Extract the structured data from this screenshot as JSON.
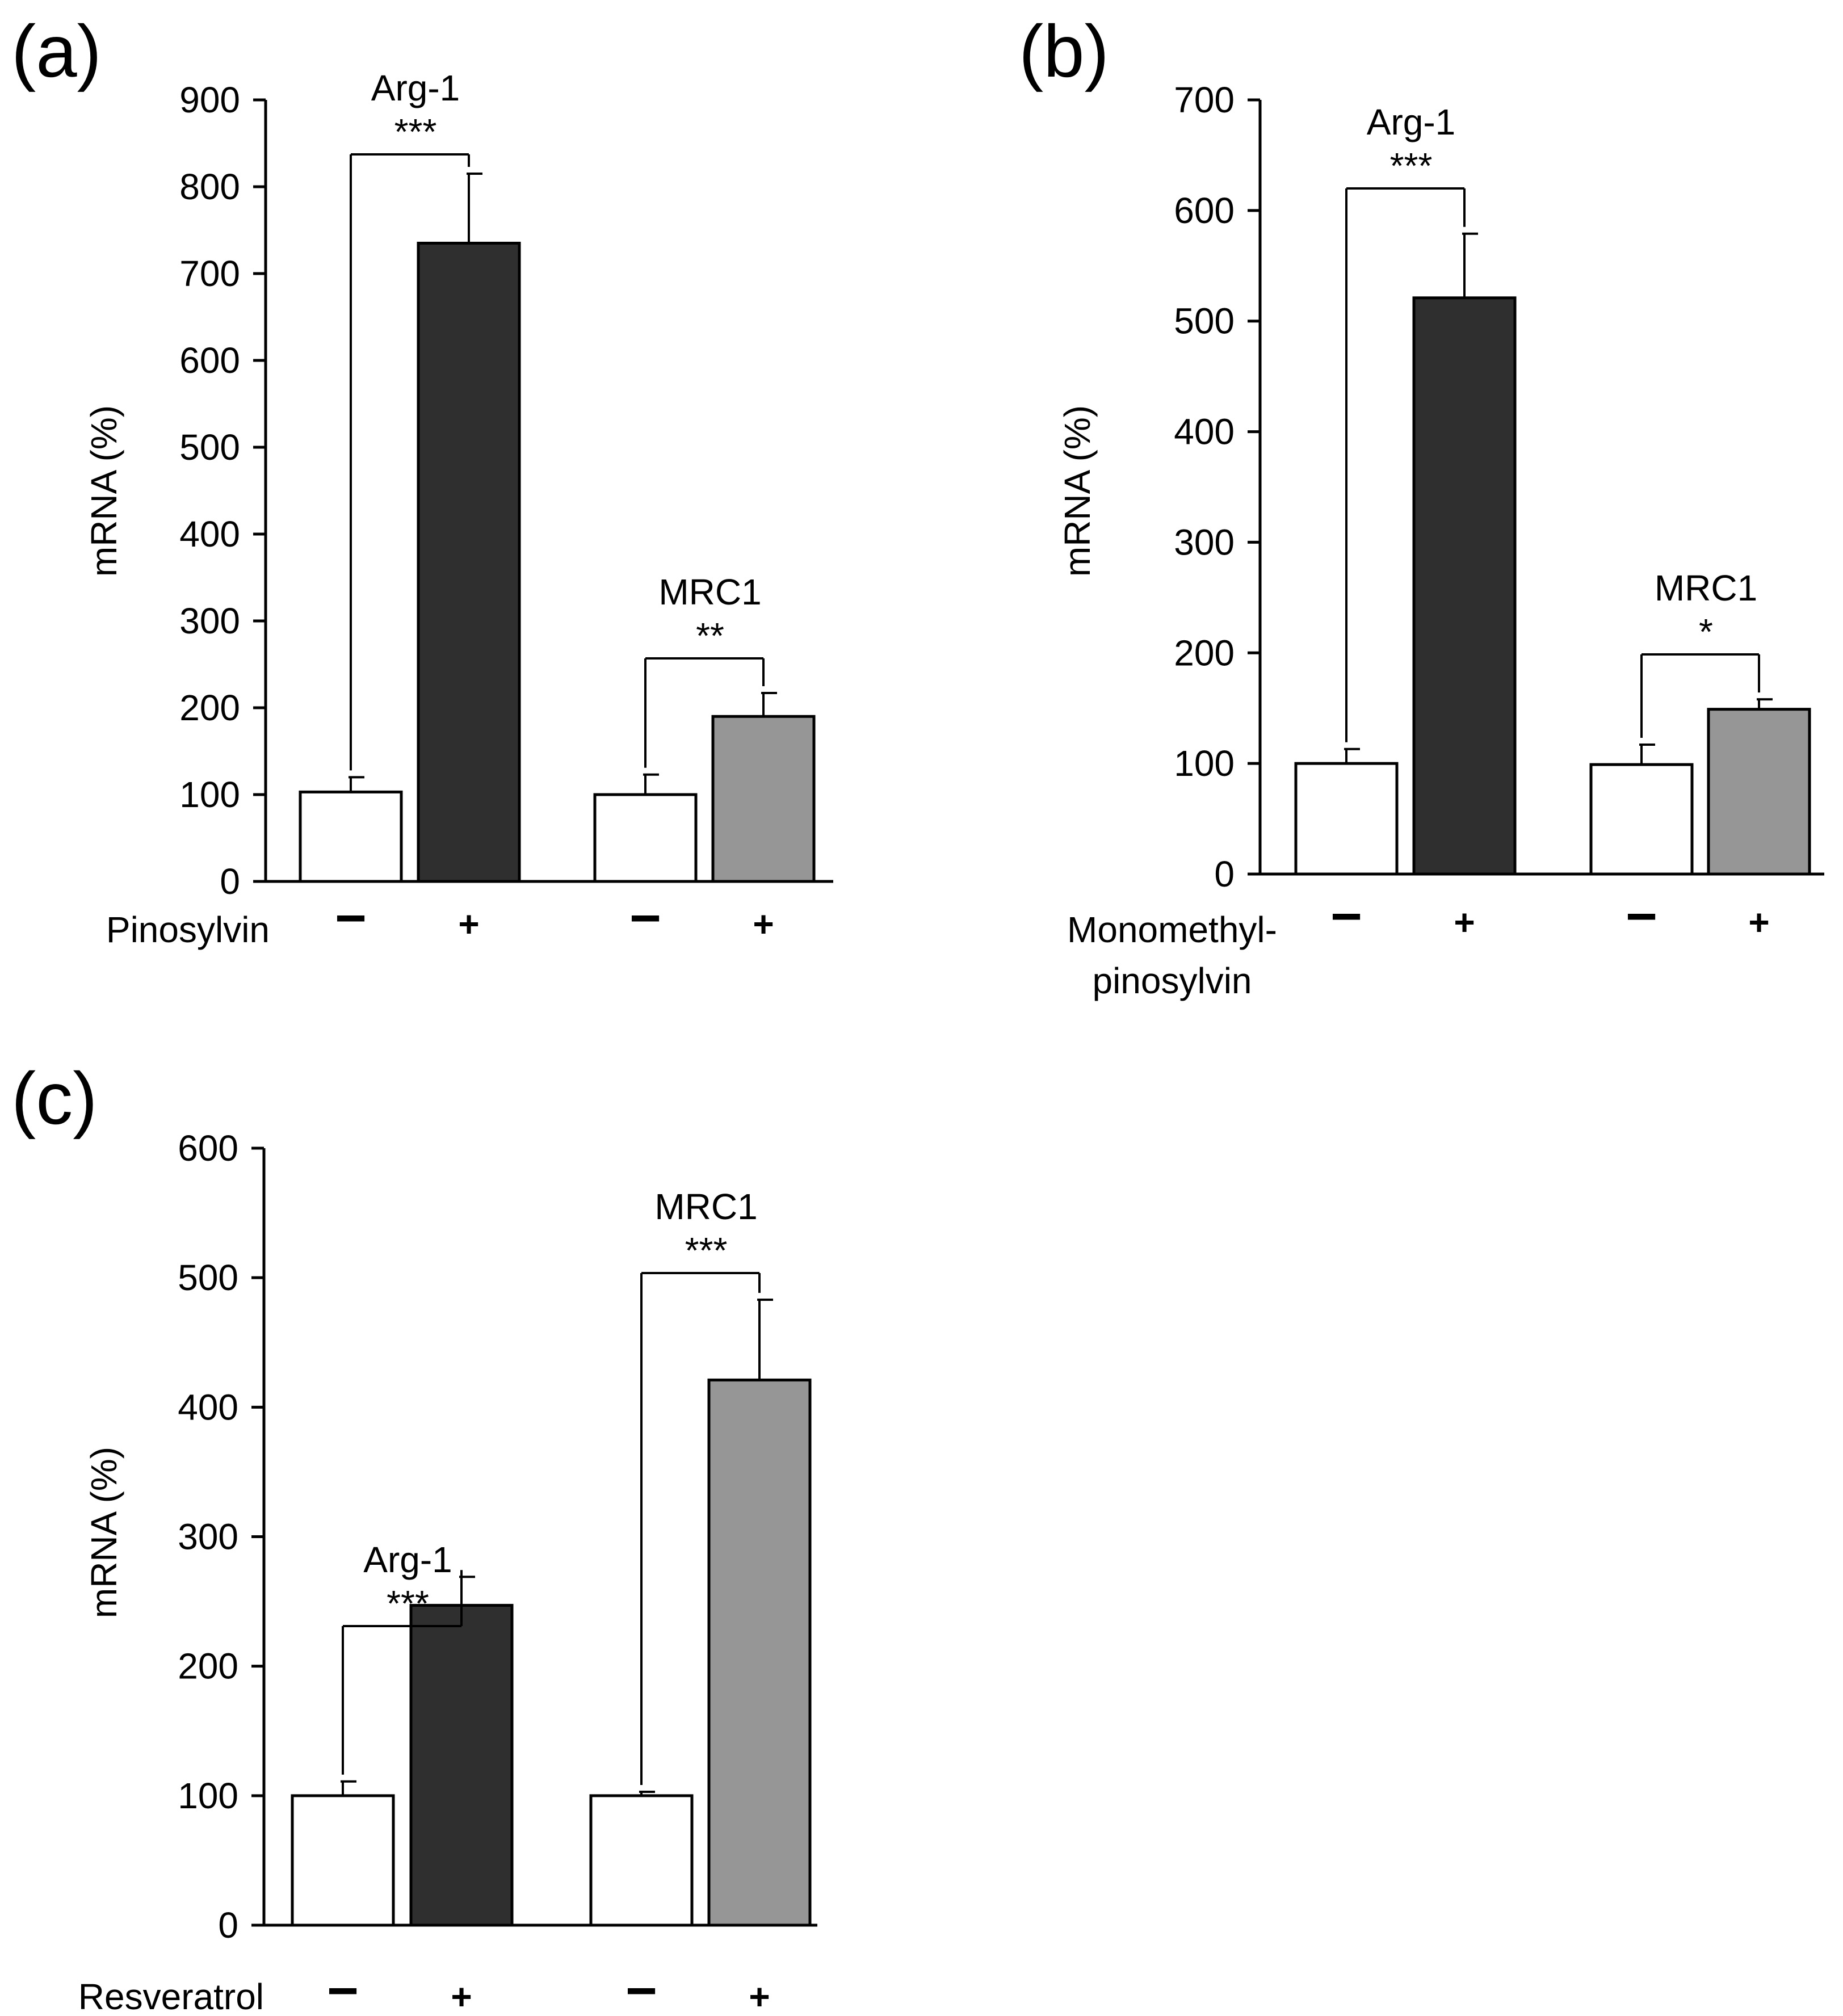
{
  "colors": {
    "control": "#ffffff",
    "arg1_treated": "#2f2f2f",
    "mrc1_treated": "#969696",
    "stroke": "#000000"
  },
  "chart_data": [
    {
      "panel": "(a)",
      "type": "bar",
      "ylabel": "mRNA (%)",
      "ylim": [
        0,
        900
      ],
      "yticks": [
        0,
        100,
        200,
        300,
        400,
        500,
        600,
        700,
        800,
        900
      ],
      "treatment_label": [
        "Pinosylvin"
      ],
      "groups": [
        {
          "gene": "Arg-1",
          "sig": "***",
          "bars": [
            {
              "treatment": "−",
              "value": 103,
              "error": 17,
              "fill": "control"
            },
            {
              "treatment": "+",
              "value": 735,
              "error": 80,
              "fill": "arg1_treated"
            }
          ]
        },
        {
          "gene": "MRC1",
          "sig": "**",
          "bars": [
            {
              "treatment": "−",
              "value": 100,
              "error": 23,
              "fill": "control"
            },
            {
              "treatment": "+",
              "value": 190,
              "error": 27,
              "fill": "mrc1_treated"
            }
          ]
        }
      ]
    },
    {
      "panel": "(b)",
      "type": "bar",
      "ylabel": "mRNA (%)",
      "ylim": [
        0,
        700
      ],
      "yticks": [
        0,
        100,
        200,
        300,
        400,
        500,
        600,
        700
      ],
      "treatment_label": [
        "Monomethyl-",
        "pinosylvin"
      ],
      "groups": [
        {
          "gene": "Arg-1",
          "sig": "***",
          "bars": [
            {
              "treatment": "−",
              "value": 100,
              "error": 13,
              "fill": "control"
            },
            {
              "treatment": "+",
              "value": 521,
              "error": 58,
              "fill": "arg1_treated"
            }
          ]
        },
        {
          "gene": "MRC1",
          "sig": "*",
          "bars": [
            {
              "treatment": "−",
              "value": 99,
              "error": 18,
              "fill": "control"
            },
            {
              "treatment": "+",
              "value": 149,
              "error": 9,
              "fill": "mrc1_treated"
            }
          ]
        }
      ]
    },
    {
      "panel": "(c)",
      "type": "bar",
      "ylabel": "mRNA (%)",
      "ylim": [
        0,
        600
      ],
      "yticks": [
        0,
        100,
        200,
        300,
        400,
        500,
        600
      ],
      "treatment_label": [
        "Resveratrol"
      ],
      "groups": [
        {
          "gene": "Arg-1",
          "sig": "***",
          "bars": [
            {
              "treatment": "−",
              "value": 100,
              "error": 11,
              "fill": "control"
            },
            {
              "treatment": "+",
              "value": 247,
              "error": 22,
              "fill": "arg1_treated"
            }
          ]
        },
        {
          "gene": "MRC1",
          "sig": "***",
          "bars": [
            {
              "treatment": "−",
              "value": 100,
              "error": 3,
              "fill": "control"
            },
            {
              "treatment": "+",
              "value": 421,
              "error": 62,
              "fill": "mrc1_treated"
            }
          ]
        }
      ]
    }
  ]
}
